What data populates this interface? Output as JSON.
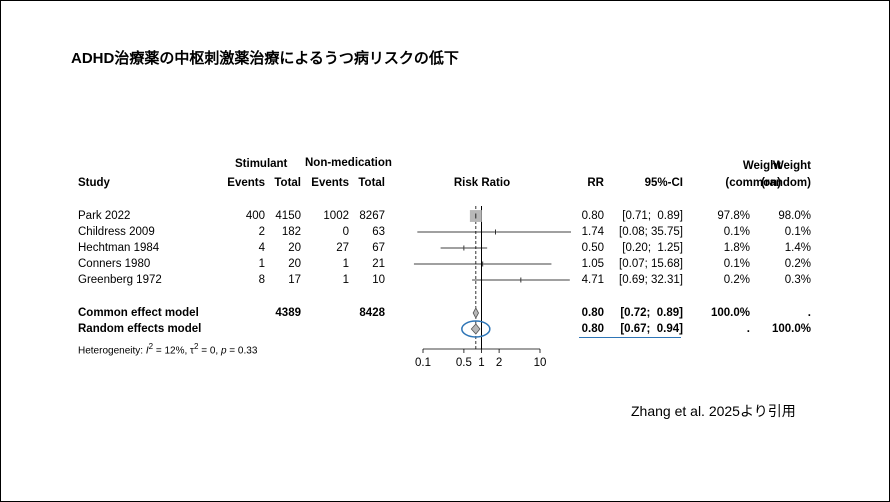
{
  "title": "ADHD治療薬の中枢刺激薬治療によるうつ病リスクの低下",
  "citation": "Zhang et al. 2025より引用",
  "header": {
    "study": "Study",
    "stimulant": "Stimulant",
    "nonmed": "Non-medication",
    "events": "Events",
    "total": "Total",
    "risk_ratio": "Risk Ratio",
    "rr": "RR",
    "ci": "95%-CI",
    "weight": "Weight",
    "common": "(common)",
    "random": "(random)"
  },
  "studies": [
    {
      "study": "Park 2022",
      "s_events": "400",
      "s_total": "4150",
      "n_events": "1002",
      "n_total": "8267",
      "rr": "0.80",
      "ci": "[0.71;  0.89]",
      "w_common": "97.8%",
      "w_random": "98.0%"
    },
    {
      "study": "Childress 2009",
      "s_events": "2",
      "s_total": "182",
      "n_events": "0",
      "n_total": "63",
      "rr": "1.74",
      "ci": "[0.08; 35.75]",
      "w_common": "0.1%",
      "w_random": "0.1%"
    },
    {
      "study": "Hechtman 1984",
      "s_events": "4",
      "s_total": "20",
      "n_events": "27",
      "n_total": "67",
      "rr": "0.50",
      "ci": "[0.20;  1.25]",
      "w_common": "1.8%",
      "w_random": "1.4%"
    },
    {
      "study": "Conners 1980",
      "s_events": "1",
      "s_total": "20",
      "n_events": "1",
      "n_total": "21",
      "rr": "1.05",
      "ci": "[0.07; 15.68]",
      "w_common": "0.1%",
      "w_random": "0.2%"
    },
    {
      "study": "Greenberg 1972",
      "s_events": "8",
      "s_total": "17",
      "n_events": "1",
      "n_total": "10",
      "rr": "4.71",
      "ci": "[0.69; 32.31]",
      "w_common": "0.2%",
      "w_random": "0.3%"
    }
  ],
  "common": {
    "label": "Common effect model",
    "s_total": "4389",
    "n_total": "8428",
    "rr": "0.80",
    "ci": "[0.72;  0.89]",
    "w_common": "100.0%",
    "w_random": "."
  },
  "random": {
    "label": "Random effects model",
    "rr": "0.80",
    "ci": "[0.67;  0.94]",
    "w_common": ".",
    "w_random": "100.0%"
  },
  "heterogeneity": {
    "prefix": "Heterogeneity: ",
    "i2": "I",
    "i2_val": " = 12%, ",
    "tau": "τ",
    "tau_val": " = 0, ",
    "p": "p",
    "p_val": " = 0.33"
  },
  "chart_data": {
    "type": "forest",
    "scale": "log",
    "axis_ticks": [
      0.1,
      0.5,
      1,
      2,
      10
    ],
    "axis_tick_labels": [
      "0.1",
      "0.5",
      "1",
      "2",
      "10"
    ],
    "xlim": [
      0.1,
      10
    ],
    "studies": [
      {
        "name": "Park 2022",
        "rr": 0.8,
        "lower": 0.71,
        "upper": 0.89,
        "weight": 97.8
      },
      {
        "name": "Childress 2009",
        "rr": 1.74,
        "lower": 0.08,
        "upper": 35.75,
        "weight": 0.1
      },
      {
        "name": "Hechtman 1984",
        "rr": 0.5,
        "lower": 0.2,
        "upper": 1.25,
        "weight": 1.8
      },
      {
        "name": "Conners 1980",
        "rr": 1.05,
        "lower": 0.07,
        "upper": 15.68,
        "weight": 0.1
      },
      {
        "name": "Greenberg 1972",
        "rr": 4.71,
        "lower": 0.69,
        "upper": 32.31,
        "weight": 0.2
      }
    ],
    "common": {
      "rr": 0.8,
      "lower": 0.72,
      "upper": 0.89
    },
    "random": {
      "rr": 0.8,
      "lower": 0.67,
      "upper": 0.94
    },
    "null_line": 1,
    "colors": {
      "square": "#b8b8b8",
      "diamond": "#b8b8b8",
      "highlight": "#2e75b6"
    }
  }
}
